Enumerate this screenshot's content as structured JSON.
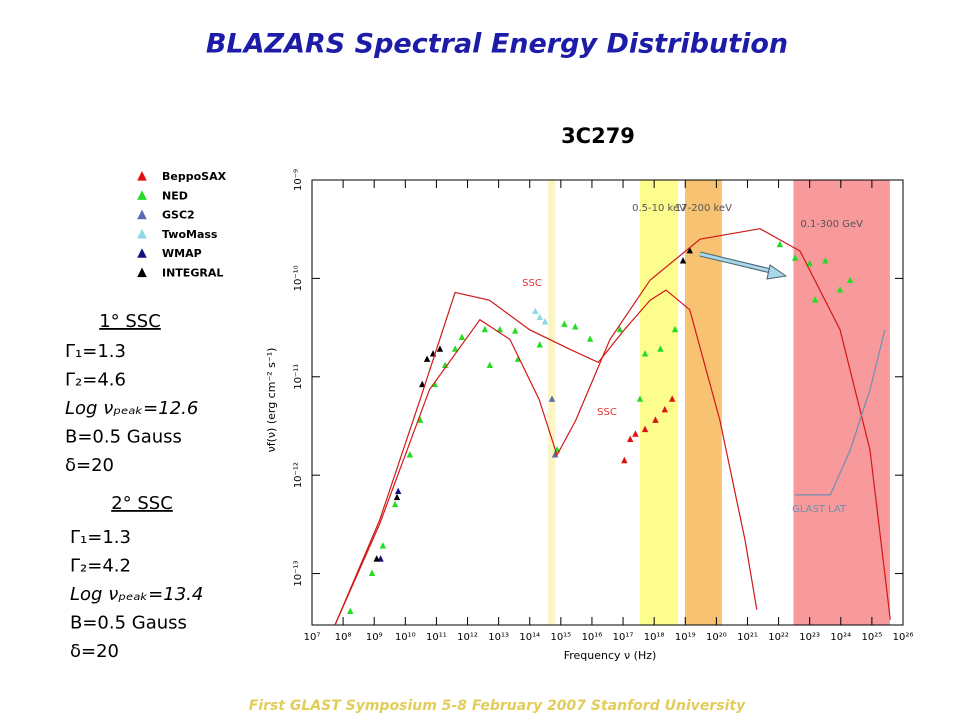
{
  "slide": {
    "title": "BLAZARS Spectral Energy Distribution",
    "footer": "First GLAST Symposium    5-8 February 2007  Stanford University",
    "panels": [
      {
        "heading": "1° SSC",
        "lines": [
          "Γ₁=1.3",
          "Γ₂=4.6",
          "Log νₚₑₐₖ=12.6",
          "B=0.5 Gauss",
          "δ=20"
        ]
      },
      {
        "heading": "2° SSC",
        "lines": [
          "Γ₁=1.3",
          "Γ₂=4.2",
          "Log νₚₑₐₖ=13.4",
          "B=0.5 Gauss",
          "δ=20"
        ]
      }
    ]
  },
  "chart_data": {
    "type": "scatter",
    "title": "3C279",
    "x_label": "Frequency ν (Hz)",
    "y_label": "νf(ν) (erg cm⁻² s⁻¹)",
    "xscale": "log",
    "yscale": "log",
    "xlim": [
      10000000.0,
      1e+26
    ],
    "ylim": [
      3e-14,
      1e-09
    ],
    "xticks": [
      {
        "value": 10000000.0,
        "label": "10⁷"
      },
      {
        "value": 100000000.0,
        "label": "10⁸"
      },
      {
        "value": 1000000000.0,
        "label": "10⁹"
      },
      {
        "value": 10000000000.0,
        "label": "10¹⁰"
      },
      {
        "value": 100000000000.0,
        "label": "10¹¹"
      },
      {
        "value": 1000000000000.0,
        "label": "10¹²"
      },
      {
        "value": 10000000000000.0,
        "label": "10¹³"
      },
      {
        "value": 100000000000000.0,
        "label": "10¹⁴"
      },
      {
        "value": 1000000000000000.0,
        "label": "10¹⁵"
      },
      {
        "value": 1e+16,
        "label": "10¹⁶"
      },
      {
        "value": 1e+17,
        "label": "10¹⁷"
      },
      {
        "value": 1e+18,
        "label": "10¹⁸"
      },
      {
        "value": 1e+19,
        "label": "10¹⁹"
      },
      {
        "value": 1e+20,
        "label": "10²⁰"
      },
      {
        "value": 1e+21,
        "label": "10²¹"
      },
      {
        "value": 1e+22,
        "label": "10²²"
      },
      {
        "value": 1e+23,
        "label": "10²³"
      },
      {
        "value": 1e+24,
        "label": "10²⁴"
      },
      {
        "value": 1e+25,
        "label": "10²⁵"
      },
      {
        "value": 1e+26,
        "label": "10²⁶"
      }
    ],
    "yticks": [
      {
        "value": 1e-13,
        "label": "10⁻¹³"
      },
      {
        "value": 1e-12,
        "label": "10⁻¹²"
      },
      {
        "value": 1e-11,
        "label": "10⁻¹¹"
      },
      {
        "value": 1e-10,
        "label": "10⁻¹⁰"
      },
      {
        "value": 1e-09,
        "label": "10⁻⁹"
      }
    ],
    "bands": [
      {
        "range": [
          390000000000000.0,
          660000000000000.0
        ],
        "color": "#fbf5c4"
      },
      {
        "label": "0.5-10 keV",
        "range": [
          3.5e+17,
          5.9e+18
        ],
        "color": "#fdfd8e"
      },
      {
        "label": "17-200 keV",
        "range": [
          9.8e+18,
          1.5e+20
        ],
        "color": "#f7c271"
      },
      {
        "label": "0.1-300 GeV",
        "range": [
          3e+22,
          3.8e+25
        ],
        "color": "#f89a9c"
      }
    ],
    "annotations": [
      "SSC",
      "SSC"
    ],
    "series": [
      {
        "name": "BeppoSAX",
        "color": "#e01010",
        "x": [
          1.1e+17,
          1.7e+17,
          2.5e+17,
          5.1e+17,
          1.1e+18,
          2.2e+18,
          3.8e+18
        ],
        "values": [
          1.4e-12,
          2.3e-12,
          2.6e-12,
          2.9e-12,
          3.6e-12,
          4.6e-12,
          5.9e-12
        ]
      },
      {
        "name": "NED",
        "color": "#22dd22",
        "x": [
          170000000.0,
          850000000.0,
          1900000000.0,
          4700000000.0,
          14000000000.0,
          30000000000.0,
          89000000000.0,
          190000000000.0,
          400000000000.0,
          660000000000.0,
          3600000000000.0,
          11000000000000.0,
          34000000000000.0,
          210000000000000.0,
          1300000000000000.0,
          2900000000000000.0,
          5200000000000.0,
          42000000000000.0,
          760000000000000.0,
          5.1e+17,
          1.6e+18,
          4.7e+18,
          3.5e+17,
          1.1e+22,
          3.4e+22,
          1e+23,
          3.2e+23,
          9.5e+23,
          2e+24,
          1.5e+23,
          8700000000000000.0,
          7.9e+16
        ],
        "values": [
          4.1e-14,
          1e-13,
          1.9e-13,
          5e-13,
          1.6e-12,
          3.6e-12,
          8.3e-12,
          1.3e-11,
          1.9e-11,
          2.5e-11,
          3e-11,
          3e-11,
          2.9e-11,
          2.1e-11,
          3.4e-11,
          3.2e-11,
          1.3e-11,
          1.5e-11,
          1.8e-12,
          1.7e-11,
          1.9e-11,
          3e-11,
          5.9e-12,
          2.2e-10,
          1.6e-10,
          1.4e-10,
          1.5e-10,
          7.6e-11,
          9.5e-11,
          6e-11,
          2.4e-11,
          3e-11
        ]
      },
      {
        "name": "GSC2",
        "color": "#5a6ab0",
        "x": [
          520000000000000.0,
          650000000000000.0
        ],
        "values": [
          5.9e-12,
          1.6e-12
        ]
      },
      {
        "name": "TwoMass",
        "color": "#8fd8e8",
        "x": [
          150000000000000.0,
          210000000000000.0,
          310000000000000.0
        ],
        "values": [
          4.6e-11,
          4e-11,
          3.6e-11
        ]
      },
      {
        "name": "WMAP",
        "color": "#101080",
        "x": [
          1600000000.0,
          5900000000.0
        ],
        "values": [
          1.4e-13,
          6.8e-13
        ]
      },
      {
        "name": "INTEGRAL",
        "color": "#000000",
        "x": [
          50000000000.0,
          78000000000.0,
          130000000000.0,
          35000000000.0,
          1200000000.0,
          5400000000.0,
          8.5e+18,
          1.4e+19
        ],
        "values": [
          1.5e-11,
          1.7e-11,
          1.9e-11,
          8.3e-12,
          1.4e-13,
          5.9e-13,
          1.5e-10,
          1.9e-10
        ]
      },
      {
        "type": "line",
        "color": "#d01818",
        "x": [
          55000000.0,
          1500000000.0,
          30000000000.0,
          400000000000.0,
          5000000000000.0,
          100000000000000.0,
          2000000000000000.0,
          1.6e+16,
          1.1e+17,
          7.4e+17,
          2.4e+18,
          1.4e+19,
          1.3e+20,
          8.3e+20,
          2e+21
        ],
        "values": [
          3e-14,
          3.5e-13,
          5.9e-12,
          7.2e-11,
          6e-11,
          3e-11,
          1.9e-11,
          1.4e-11,
          3e-11,
          6e-11,
          7.6e-11,
          4.8e-11,
          3.6e-12,
          2.2e-13,
          4.3e-14
        ]
      },
      {
        "type": "line",
        "color": "#d01818",
        "x": [
          55000000.0,
          1500000000.0,
          60000000000.0,
          2500000000000.0,
          23000000000000.0,
          200000000000000.0,
          750000000000000.0,
          3000000000000000.0,
          3.8e+16,
          7.4e+17,
          3e+19,
          2.5e+21,
          4.9e+22,
          9.5e+23,
          8.7e+24,
          3.9e+25
        ],
        "values": [
          3e-14,
          3.2e-13,
          7.4e-12,
          3.8e-11,
          2.4e-11,
          5.9e-12,
          1.6e-12,
          3.6e-12,
          2.4e-11,
          9.6e-11,
          2.5e-10,
          3.2e-10,
          1.9e-10,
          3e-11,
          1.8e-12,
          3.4e-14
        ]
      },
      {
        "type": "line",
        "name": "GLAST LAT",
        "color": "#6f8fb0",
        "x": [
          3.4e+22,
          4.6e+23,
          2e+24,
          8.7e+24,
          2.6e+25
        ],
        "values": [
          6.3e-13,
          6.3e-13,
          1.8e-12,
          7.4e-12,
          3e-11
        ]
      }
    ]
  }
}
